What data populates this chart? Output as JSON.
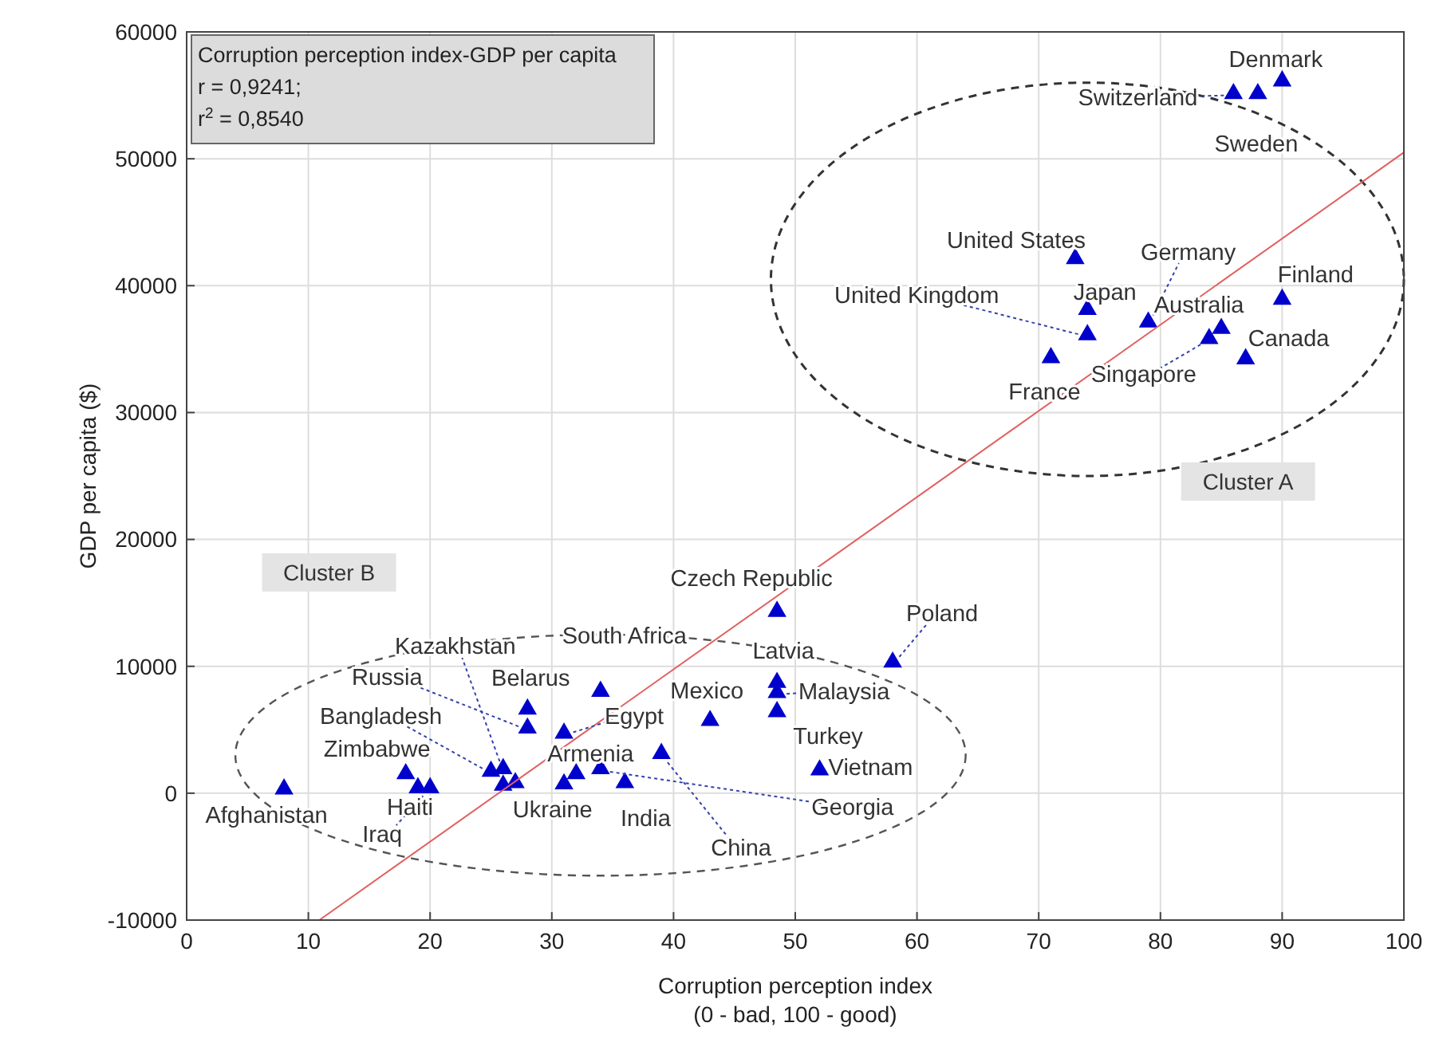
{
  "chart_data": {
    "type": "scatter",
    "xlabel": "Corruption perception index\n(0 - bad, 100 - good)",
    "ylabel": "GDP per capita ($)",
    "xlim": [
      0,
      100
    ],
    "ylim": [
      -10000,
      60000
    ],
    "xticks": [
      0,
      10,
      20,
      30,
      40,
      50,
      60,
      70,
      80,
      90,
      100
    ],
    "yticks": [
      -10000,
      0,
      10000,
      20000,
      30000,
      40000,
      50000,
      60000
    ],
    "grid": true,
    "marker": "triangle",
    "series": [
      {
        "color": "#0000cc",
        "x": [
          90,
          86,
          88,
          73,
          74,
          74,
          79,
          84,
          85,
          90,
          87,
          71,
          48.5,
          58,
          48.5,
          48.5,
          48.5,
          52,
          43,
          39,
          34,
          31,
          28,
          28,
          25,
          26,
          26,
          27,
          31,
          32,
          34,
          36,
          18,
          19,
          20,
          8
        ],
        "values": [
          56000,
          55000,
          55000,
          42000,
          38000,
          36000,
          37000,
          35700,
          36500,
          38800,
          34100,
          34200,
          14200,
          10200,
          8600,
          7800,
          6300,
          1700,
          5600,
          3000,
          7900,
          4600,
          6500,
          5000,
          1600,
          1800,
          500,
          700,
          600,
          1400,
          1800,
          700,
          1400,
          300,
          300,
          200
        ]
      },
      {
        "type": "line",
        "marker": "none",
        "color": "#e06060",
        "x": [
          10.9,
          100
        ],
        "values": [
          -10000,
          50500
        ]
      }
    ],
    "annotations": [
      "Corruption perception index-GDP per capita",
      "r = 0,9241;",
      "r$^{2}$ = 0,8540",
      "Cluster A",
      "Cluster B",
      {
        "text": "Denmark",
        "x": 90,
        "y": 56000
      },
      {
        "text": "Switzerland",
        "x": 86,
        "y": 55000
      },
      {
        "text": "Sweden",
        "x": 88,
        "y": 55000
      },
      {
        "text": "United States",
        "x": 73,
        "y": 42000
      },
      {
        "text": "Germany",
        "x": 79,
        "y": 37000
      },
      {
        "text": "United Kingdom",
        "x": 74,
        "y": 36000
      },
      {
        "text": "Japan",
        "x": 74,
        "y": 38000
      },
      {
        "text": "Finland",
        "x": 90,
        "y": 38800
      },
      {
        "text": "Australia",
        "x": 85,
        "y": 36500
      },
      {
        "text": "Canada",
        "x": 87,
        "y": 34100
      },
      {
        "text": "Singapore",
        "x": 84,
        "y": 35700
      },
      {
        "text": "France",
        "x": 71,
        "y": 34200
      },
      {
        "text": "Czech Republic",
        "x": 48.5,
        "y": 14200
      },
      {
        "text": "Poland",
        "x": 58,
        "y": 10200
      },
      {
        "text": "South Africa",
        "x": 34,
        "y": 7900
      },
      {
        "text": "Kazakhstan",
        "x": 26,
        "y": 1800
      },
      {
        "text": "Latvia",
        "x": 48.5,
        "y": 8600
      },
      {
        "text": "Russia",
        "x": 28,
        "y": 5000
      },
      {
        "text": "Belarus",
        "x": 28,
        "y": 6500
      },
      {
        "text": "Mexico",
        "x": 43,
        "y": 5600
      },
      {
        "text": "Malaysia",
        "x": 48.5,
        "y": 7800
      },
      {
        "text": "Bangladesh",
        "x": 25,
        "y": 1600
      },
      {
        "text": "Egypt",
        "x": 31,
        "y": 4600
      },
      {
        "text": "Turkey",
        "x": 48.5,
        "y": 6300
      },
      {
        "text": "Zimbabwe",
        "x": 18,
        "y": 1400
      },
      {
        "text": "Armenia",
        "x": 32,
        "y": 1400
      },
      {
        "text": "Vietnam",
        "x": 52,
        "y": 1700
      },
      {
        "text": "Afghanistan",
        "x": 8,
        "y": 200
      },
      {
        "text": "Haiti",
        "x": 19,
        "y": 300
      },
      {
        "text": "Georgia",
        "x": 34,
        "y": 1800
      },
      {
        "text": "Ukraine",
        "x": 26,
        "y": 500
      },
      {
        "text": "India",
        "x": 36,
        "y": 700
      },
      {
        "text": "Iraq",
        "x": 20,
        "y": 300
      },
      {
        "text": "China",
        "x": 39,
        "y": 3000
      }
    ]
  }
}
